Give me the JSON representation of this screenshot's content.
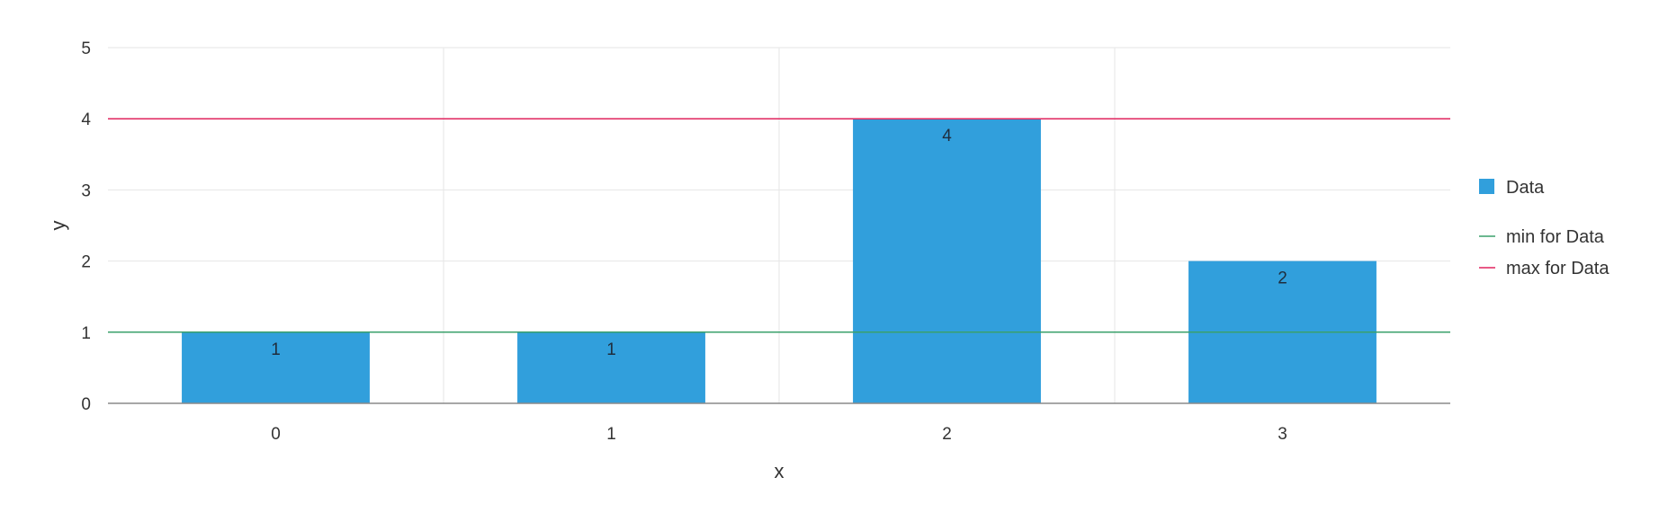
{
  "chart_data": {
    "type": "bar",
    "xlabel": "x",
    "ylabel": "y",
    "categories": [
      "0",
      "1",
      "2",
      "3"
    ],
    "series": [
      {
        "name": "Data",
        "values": [
          1,
          1,
          4,
          2
        ],
        "color": "#319fdc"
      }
    ],
    "reference_lines": [
      {
        "name": "min for Data",
        "value": 1,
        "color": "#3aa06b"
      },
      {
        "name": "max for Data",
        "value": 4,
        "color": "#e0245e"
      }
    ],
    "ylim": [
      0,
      5
    ],
    "yticks": [
      "0",
      "1",
      "2",
      "3",
      "4",
      "5"
    ],
    "grid": true,
    "data_labels": true,
    "legend_position": "right"
  }
}
